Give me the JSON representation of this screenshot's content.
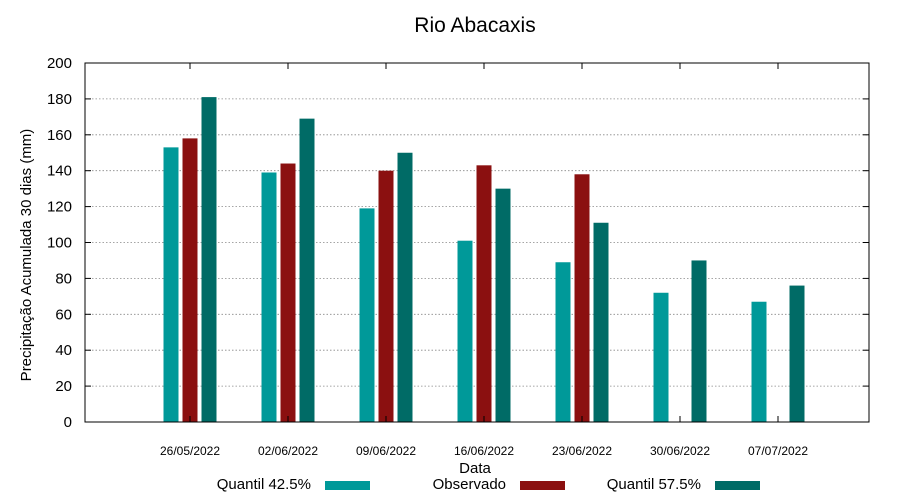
{
  "chart_data": {
    "type": "bar",
    "title": "Rio Abacaxis",
    "xlabel": "Data",
    "ylabel": "Precipitação Acumulada 30 dias (mm)",
    "ylim": [
      0,
      200
    ],
    "yticks": [
      0,
      20,
      40,
      60,
      80,
      100,
      120,
      140,
      160,
      180,
      200
    ],
    "grid": true,
    "legend_position": "bottom",
    "categories": [
      "26/05/2022",
      "02/06/2022",
      "09/06/2022",
      "16/06/2022",
      "23/06/2022",
      "30/06/2022",
      "07/07/2022"
    ],
    "series": [
      {
        "name": "Quantil 42.5%",
        "color": "#009999",
        "values": [
          153,
          139,
          119,
          101,
          89,
          72,
          67
        ]
      },
      {
        "name": "Observado",
        "color": "#8b1010",
        "values": [
          158,
          144,
          140,
          143,
          138,
          null,
          null
        ]
      },
      {
        "name": "Quantil 57.5%",
        "color": "#006b66",
        "values": [
          181,
          169,
          150,
          130,
          111,
          90,
          76
        ]
      }
    ]
  }
}
